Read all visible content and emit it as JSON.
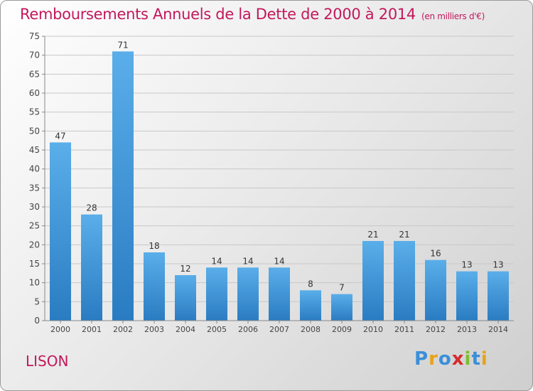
{
  "header": {
    "title": "Remboursements Annuels de la Dette de 2000 à 2014",
    "unit": "(en milliers d'€)"
  },
  "footer": {
    "commune": "LISON",
    "logo_text": "Proxiti",
    "logo_colors": [
      "#3a8fd8",
      "#e8a21b",
      "#3a8fd8",
      "#d62b2b",
      "#7cbf2b",
      "#3a8fd8",
      "#e8a21b"
    ]
  },
  "chart_data": {
    "type": "bar",
    "title": "Remboursements Annuels de la Dette de 2000 à 2014",
    "categories": [
      "2000",
      "2001",
      "2002",
      "2003",
      "2004",
      "2005",
      "2006",
      "2007",
      "2008",
      "2009",
      "2010",
      "2011",
      "2012",
      "2013",
      "2014"
    ],
    "values": [
      47,
      28,
      71,
      18,
      12,
      14,
      14,
      14,
      8,
      7,
      21,
      21,
      16,
      13,
      13
    ],
    "ylim": [
      0,
      75
    ],
    "yticks": [
      0,
      5,
      10,
      15,
      20,
      25,
      30,
      35,
      40,
      45,
      50,
      55,
      60,
      65,
      70,
      75
    ],
    "grid": true,
    "bar_color": "#3b95dc",
    "label_color": "#333333"
  }
}
